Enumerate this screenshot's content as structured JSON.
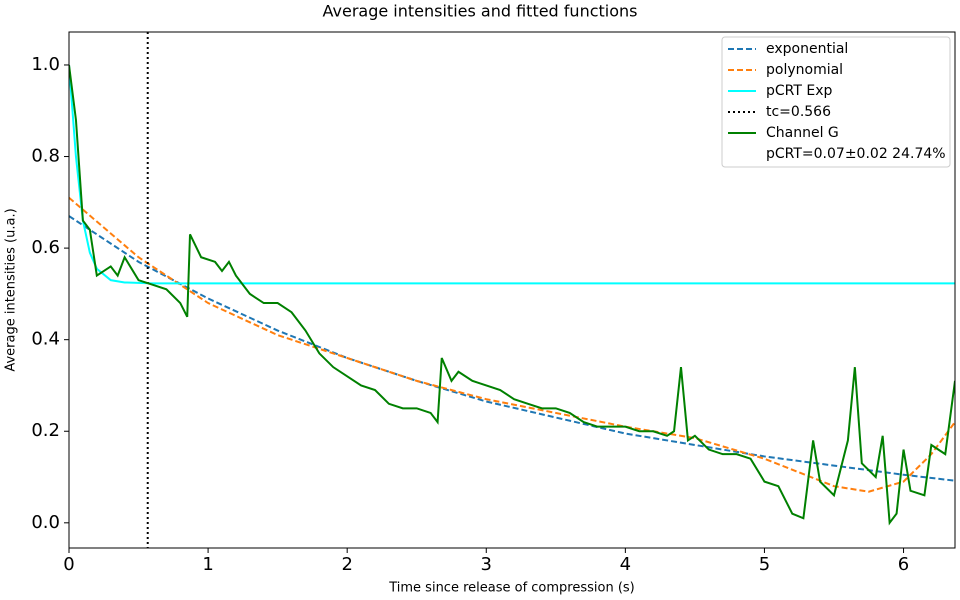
{
  "chart_data": {
    "type": "line",
    "title": "Average intensities and fitted functions",
    "x_label": "Time since release of compression (s)",
    "y_label": "Average intensities (u.a.)",
    "xlim": [
      0,
      6.37
    ],
    "ylim": [
      -0.055,
      1.072
    ],
    "xticks": [
      0,
      1,
      2,
      3,
      4,
      5,
      6
    ],
    "yticks": [
      {
        "value": 0,
        "label": "0.0"
      },
      0.2,
      0.4,
      0.6,
      0.8,
      {
        "value": 1,
        "label": "1.0"
      }
    ],
    "legend": "upper right",
    "series": [
      {
        "name": "exponential",
        "color": "#1f77b4",
        "style": "dashed",
        "x": [
          0,
          0.5,
          1,
          1.5,
          2,
          2.5,
          3,
          3.5,
          4,
          4.5,
          5,
          5.5,
          6,
          6.37
        ],
        "values": [
          0.67,
          0.57,
          0.49,
          0.42,
          0.36,
          0.31,
          0.265,
          0.23,
          0.195,
          0.17,
          0.145,
          0.125,
          0.105,
          0.092
        ]
      },
      {
        "name": "polynomial",
        "color": "#ff7f0e",
        "style": "dashed",
        "x": [
          0,
          0.5,
          1,
          1.5,
          2,
          2.5,
          3,
          3.5,
          4,
          4.5,
          5,
          5.25,
          5.5,
          5.75,
          6,
          6.2,
          6.37
        ],
        "values": [
          0.71,
          0.58,
          0.48,
          0.41,
          0.36,
          0.31,
          0.27,
          0.24,
          0.21,
          0.185,
          0.14,
          0.11,
          0.08,
          0.068,
          0.09,
          0.15,
          0.22
        ]
      },
      {
        "name": "pCRT Exp",
        "color": "#00ffff",
        "style": "solid",
        "x": [
          0,
          0.05,
          0.1,
          0.15,
          0.2,
          0.3,
          0.4,
          0.6,
          6.37
        ],
        "values": [
          1.0,
          0.8,
          0.66,
          0.59,
          0.555,
          0.53,
          0.525,
          0.523,
          0.523
        ]
      },
      {
        "name": "tc=0.566",
        "color": "#000000",
        "style": "dotted",
        "vline": 0.566
      },
      {
        "name": "Channel G",
        "color": "#008000",
        "style": "solid",
        "x": [
          0,
          0.05,
          0.1,
          0.15,
          0.2,
          0.3,
          0.35,
          0.4,
          0.5,
          0.6,
          0.7,
          0.8,
          0.85,
          0.87,
          0.95,
          1.05,
          1.1,
          1.15,
          1.2,
          1.3,
          1.4,
          1.5,
          1.6,
          1.7,
          1.8,
          1.9,
          2.0,
          2.1,
          2.2,
          2.3,
          2.4,
          2.5,
          2.6,
          2.65,
          2.68,
          2.75,
          2.8,
          2.9,
          3.0,
          3.1,
          3.2,
          3.3,
          3.4,
          3.5,
          3.6,
          3.7,
          3.8,
          3.9,
          4.0,
          4.1,
          4.2,
          4.3,
          4.35,
          4.4,
          4.45,
          4.5,
          4.6,
          4.7,
          4.8,
          4.9,
          5.0,
          5.1,
          5.2,
          5.28,
          5.35,
          5.4,
          5.5,
          5.6,
          5.65,
          5.7,
          5.8,
          5.85,
          5.9,
          5.95,
          6.0,
          6.05,
          6.15,
          6.2,
          6.3,
          6.37
        ],
        "values": [
          1.0,
          0.88,
          0.66,
          0.64,
          0.54,
          0.56,
          0.54,
          0.58,
          0.53,
          0.52,
          0.51,
          0.48,
          0.45,
          0.63,
          0.58,
          0.57,
          0.55,
          0.57,
          0.54,
          0.5,
          0.48,
          0.48,
          0.46,
          0.42,
          0.37,
          0.34,
          0.32,
          0.3,
          0.29,
          0.26,
          0.25,
          0.25,
          0.24,
          0.22,
          0.36,
          0.31,
          0.33,
          0.31,
          0.3,
          0.29,
          0.27,
          0.26,
          0.25,
          0.25,
          0.24,
          0.22,
          0.21,
          0.21,
          0.21,
          0.2,
          0.2,
          0.19,
          0.2,
          0.34,
          0.18,
          0.19,
          0.16,
          0.15,
          0.15,
          0.14,
          0.09,
          0.08,
          0.02,
          0.01,
          0.18,
          0.09,
          0.06,
          0.18,
          0.34,
          0.13,
          0.1,
          0.19,
          0.0,
          0.02,
          0.16,
          0.07,
          0.06,
          0.17,
          0.15,
          0.31
        ]
      }
    ],
    "legend_note": "pCRT=0.07±0.02 24.74%"
  }
}
